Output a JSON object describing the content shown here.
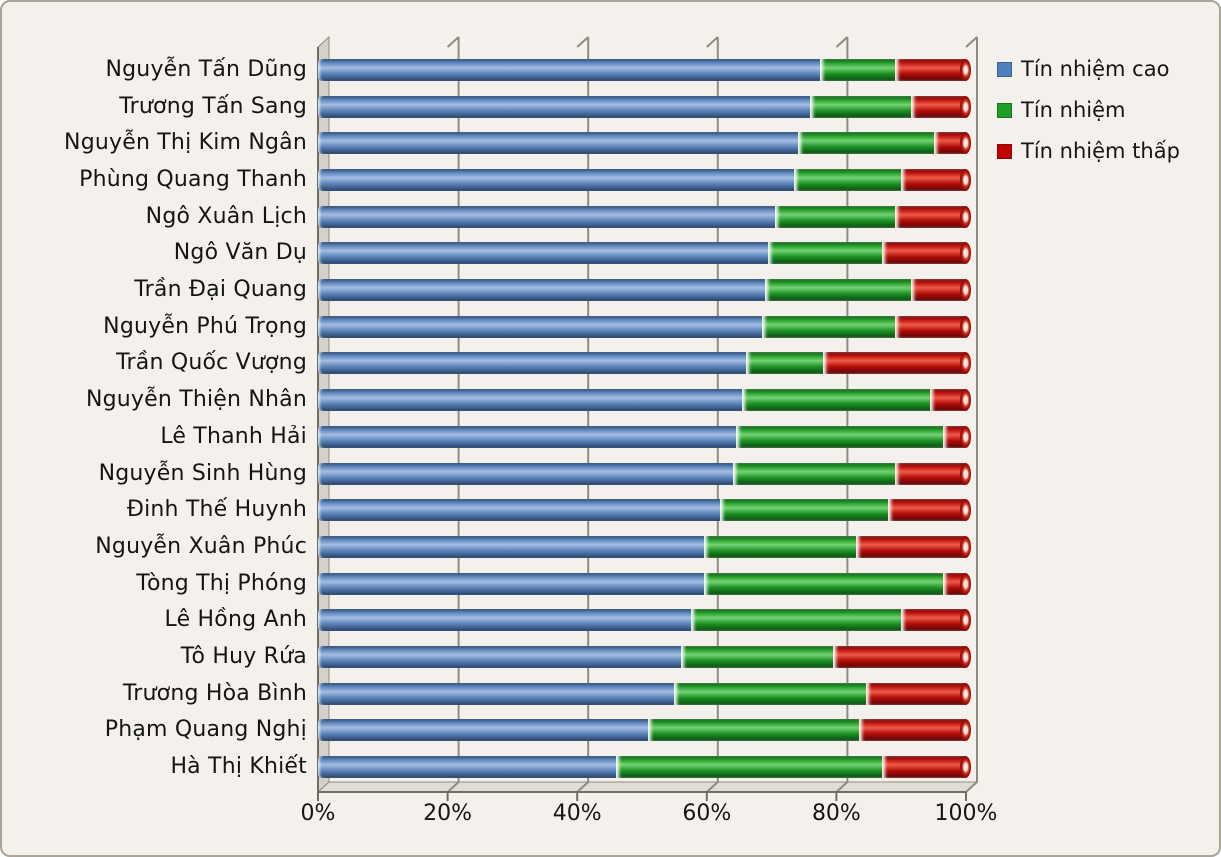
{
  "chart_data": {
    "type": "bar",
    "orientation": "horizontal",
    "stacked": true,
    "unit": "percent",
    "title": "",
    "xlabel": "",
    "ylabel": "",
    "x_range": [
      0,
      100
    ],
    "x_ticks": [
      "0%",
      "20%",
      "40%",
      "60%",
      "80%",
      "100%"
    ],
    "grid": true,
    "legend_position": "top-right",
    "categories": [
      "Nguyễn Tấn Dũng",
      "Trương Tấn Sang",
      "Nguyễn Thị Kim Ngân",
      "Phùng Quang Thanh",
      "Ngô Xuân Lịch",
      "Ngô Văn Dụ",
      "Trần Đại Quang",
      "Nguyễn Phú Trọng",
      "Trần Quốc Vượng",
      "Nguyễn Thiện Nhân",
      "Lê Thanh Hải",
      "Nguyễn Sinh Hùng",
      "Đinh Thế Huynh",
      "Nguyễn Xuân Phúc",
      "Tòng Thị Phóng",
      "Lê Hồng Anh",
      "Tô Huy Rứa",
      "Trương Hòa Bình",
      "Phạm Quang Nghị",
      "Hà Thị Khiết"
    ],
    "series": [
      {
        "name": "Tín nhiệm cao",
        "color": "#4f81bd",
        "values": [
          77.5,
          76,
          74,
          73.5,
          70.5,
          69.5,
          69,
          68.5,
          66,
          65.5,
          64.5,
          64,
          62,
          59.5,
          59.5,
          57.5,
          56,
          55,
          51,
          46
        ]
      },
      {
        "name": "Tín nhiệm",
        "color": "#1e9e24",
        "values": [
          11.5,
          15.5,
          21,
          16.5,
          18.5,
          17.5,
          22.5,
          20.5,
          12,
          29,
          32,
          25,
          26,
          23.5,
          37,
          32.5,
          23.5,
          29.5,
          32.5,
          41
        ]
      },
      {
        "name": "Tín nhiệm thấp",
        "color": "#c00404",
        "values": [
          11,
          8.5,
          5,
          10,
          11,
          13,
          8.5,
          11,
          22,
          5.5,
          3.5,
          11,
          12,
          17,
          3.5,
          10,
          20.5,
          15.5,
          16.5,
          13
        ]
      }
    ]
  }
}
